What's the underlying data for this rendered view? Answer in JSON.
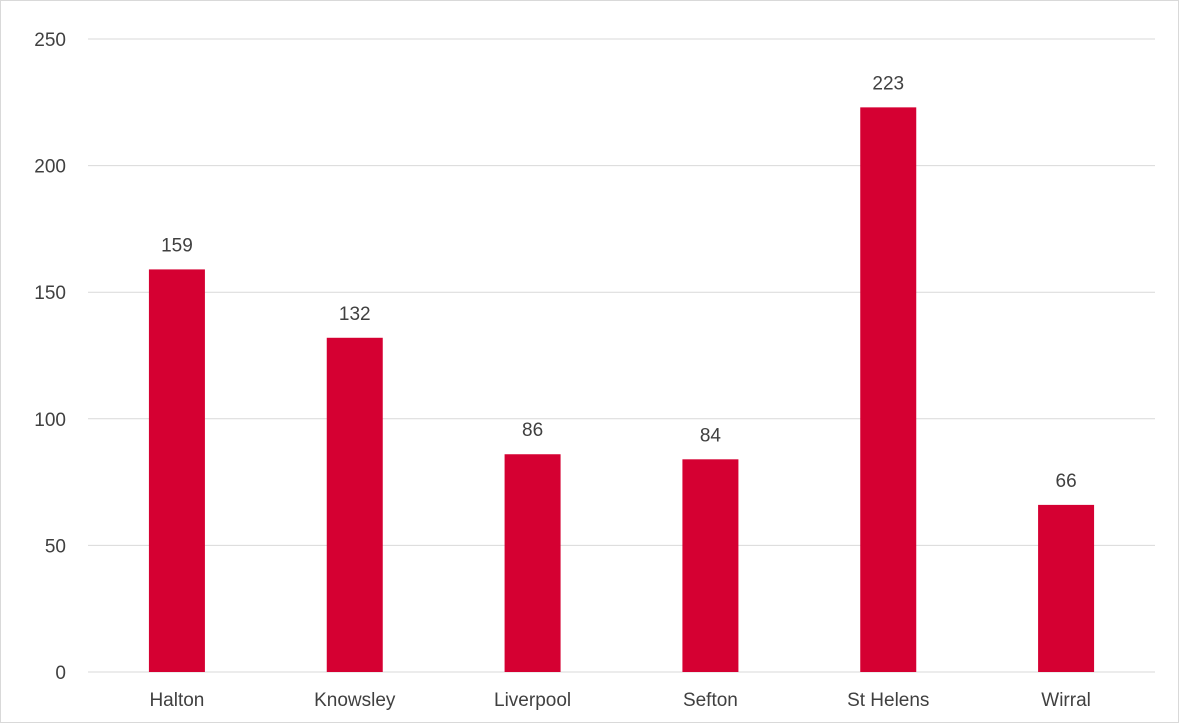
{
  "chart_data": {
    "type": "bar",
    "categories": [
      "Halton",
      "Knowsley",
      "Liverpool",
      "Sefton",
      "St Helens",
      "Wirral"
    ],
    "values": [
      159,
      132,
      86,
      84,
      223,
      66
    ],
    "data_labels": [
      "159",
      "132",
      "86",
      "84",
      "223",
      "66"
    ],
    "y_ticks": [
      "0",
      "50",
      "100",
      "150",
      "200",
      "250"
    ],
    "ylim": [
      0,
      250
    ],
    "grid": true,
    "legend": "none",
    "title": "",
    "xlabel": "",
    "ylabel": ""
  },
  "colors": {
    "bar": "#d50032",
    "grid": "#d9d9d9",
    "text": "#404040"
  }
}
